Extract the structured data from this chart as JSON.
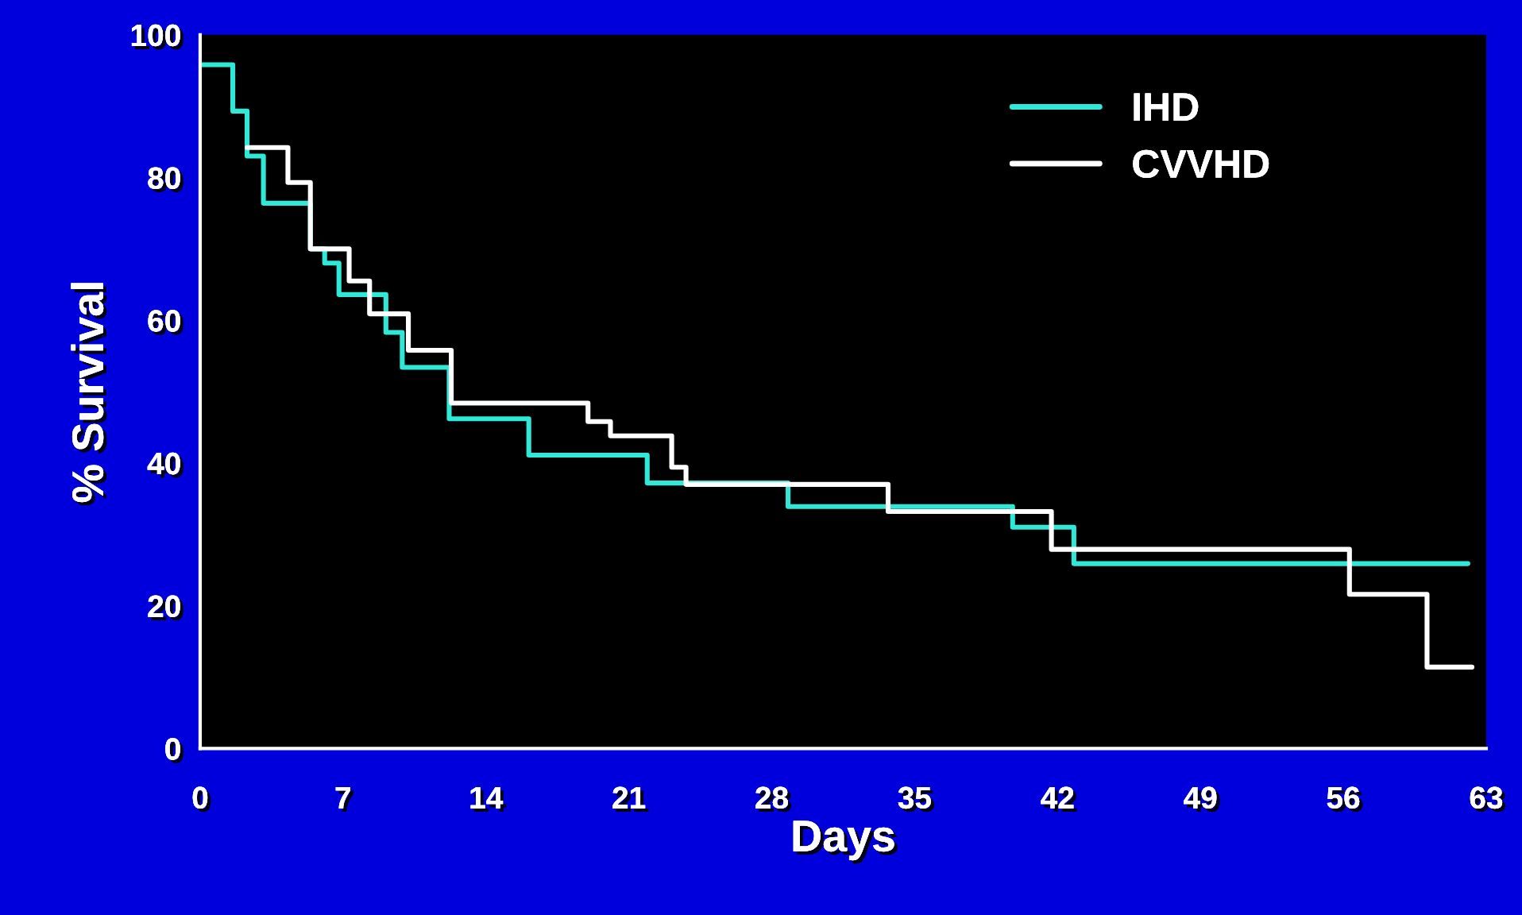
{
  "chart_data": {
    "type": "step",
    "xlabel": "Days",
    "ylabel": "% Survival",
    "xlim": [
      0,
      63
    ],
    "xticks": [
      0,
      7,
      14,
      21,
      28,
      35,
      42,
      49,
      56,
      63
    ],
    "ylim": [
      0,
      100
    ],
    "yticks": [
      0,
      20,
      40,
      60,
      80,
      100
    ],
    "grid": false,
    "legend": "top right",
    "line_style": "solid",
    "marker": "none",
    "series": [
      {
        "name": "IHD",
        "color": "#2ee8d8",
        "x": [
          0,
          1.6,
          2.3,
          3.1,
          5.4,
          6.1,
          6.8,
          9.1,
          9.9,
          12.2,
          16.1,
          21.9,
          28.8,
          39.8,
          42.8,
          62.1
        ],
        "values": [
          95.8,
          89.3,
          83,
          76.4,
          70,
          68,
          63.6,
          58.3,
          53.4,
          46.2,
          41.1,
          37.2,
          33.9,
          31,
          25.9,
          25.9
        ]
      },
      {
        "name": "CVVHD",
        "color": "#ffffff",
        "x": [
          2.3,
          4.3,
          5.4,
          7.3,
          8.3,
          10.2,
          12.3,
          19.0,
          20.1,
          23.1,
          23.8,
          33.7,
          41.7,
          56.3,
          60.1,
          62.3
        ],
        "values": [
          84.2,
          79.3,
          70,
          65.5,
          60.9,
          55.8,
          48.4,
          45.8,
          43.8,
          39.4,
          37,
          33.2,
          27.9,
          21.6,
          11.4,
          11.4
        ]
      }
    ]
  }
}
